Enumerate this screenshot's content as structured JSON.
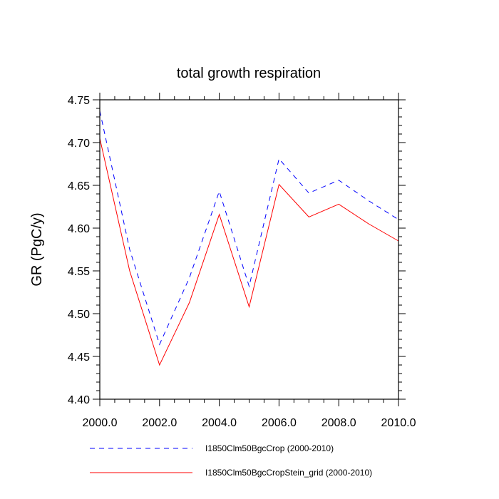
{
  "chart_data": {
    "type": "line",
    "title": "total growth respiration",
    "ylabel": "GR  (PgC/y)",
    "xlabel": "",
    "xlim": [
      2000,
      2010
    ],
    "ylim": [
      4.4,
      4.75
    ],
    "x_ticks": [
      2000,
      2002,
      2004,
      2006,
      2008,
      2010
    ],
    "x_tick_labels": [
      "2000.0",
      "2002.0",
      "2004.0",
      "2006.0",
      "2008.0",
      "2010.0"
    ],
    "y_ticks": [
      4.4,
      4.45,
      4.5,
      4.55,
      4.6,
      4.65,
      4.7,
      4.75
    ],
    "y_tick_labels": [
      "4.40",
      "4.45",
      "4.50",
      "4.55",
      "4.60",
      "4.65",
      "4.70",
      "4.75"
    ],
    "grid": false,
    "legend_position": "bottom",
    "x": [
      2000,
      2001,
      2002,
      2003,
      2004,
      2005,
      2006,
      2007,
      2008,
      2009,
      2010
    ],
    "series": [
      {
        "name": "I1850Clm50BgcCrop (2000-2010)",
        "color": "#0000ff",
        "dash": "dashed",
        "values": [
          4.737,
          4.575,
          4.464,
          4.542,
          4.643,
          4.532,
          4.681,
          4.641,
          4.656,
          4.632,
          4.61
        ]
      },
      {
        "name": "I1850Clm50BgcCropStein_grid (2000-2010)",
        "color": "#ff0000",
        "dash": "solid",
        "values": [
          4.705,
          4.55,
          4.44,
          4.513,
          4.616,
          4.508,
          4.651,
          4.613,
          4.628,
          4.605,
          4.585
        ]
      }
    ]
  }
}
